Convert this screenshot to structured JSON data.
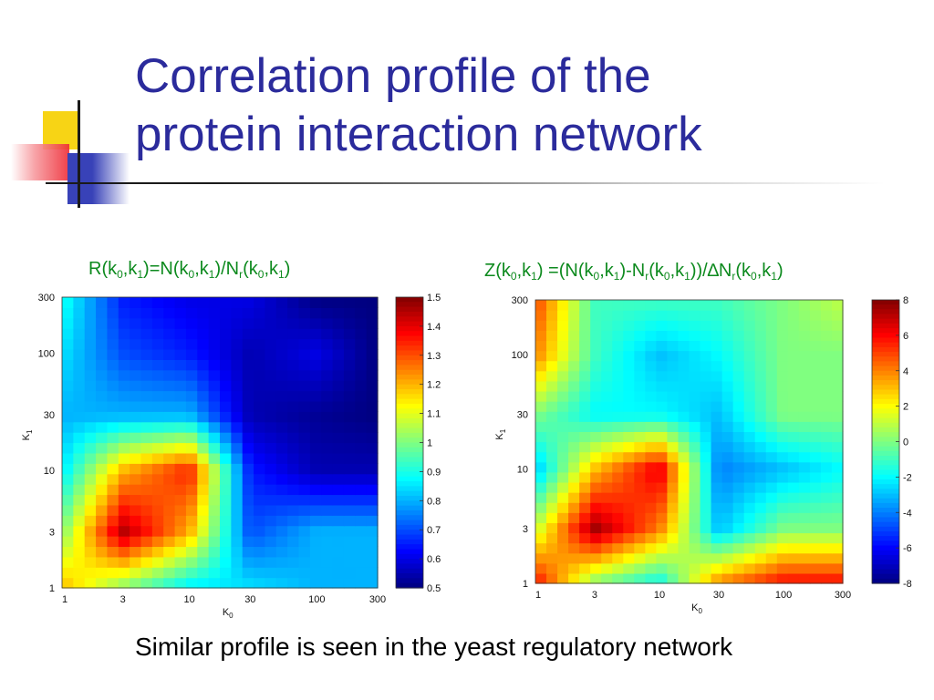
{
  "slide": {
    "title_line1": "Correlation profile of the",
    "title_line2": "protein interaction network",
    "caption": "Similar profile is seen in the yeast regulatory network",
    "colors": {
      "title": "#2b2b9c",
      "formula": "#0d8a1e",
      "caption": "#000000"
    }
  },
  "formula_left": {
    "parts": [
      "R(k",
      "0",
      ",k",
      "1",
      ")=N(k",
      "0",
      ",k",
      "1",
      ")/N",
      "r",
      "(k",
      "0",
      ",k",
      "1",
      ")"
    ]
  },
  "formula_right": {
    "parts": [
      "Z(k",
      "0",
      ",k",
      "1",
      ") =(N(k",
      "0",
      ",k",
      "1",
      ")-N",
      "r",
      "(k",
      "0",
      ",k",
      "1",
      "))/∆N",
      "r",
      "(k",
      "0",
      ",k",
      "1",
      ")"
    ]
  },
  "chart_data": [
    {
      "type": "heatmap",
      "title": "R(k0,k1)=N(k0,k1)/Nr(k0,k1)",
      "xlabel": "K0",
      "ylabel": "K1",
      "x_scale": "log",
      "y_scale": "log",
      "xlim": [
        1,
        300
      ],
      "ylim": [
        1,
        300
      ],
      "x_ticks": [
        "1",
        "3",
        "10",
        "30",
        "100",
        "300"
      ],
      "y_ticks": [
        "1",
        "3",
        "10",
        "30",
        "100",
        "300"
      ],
      "x": [
        1,
        3,
        10,
        30,
        100,
        300
      ],
      "y": [
        1,
        3,
        10,
        30,
        100,
        300
      ],
      "z": [
        [
          1.2,
          1.0,
          0.85,
          0.85,
          0.8,
          0.8
        ],
        [
          1.0,
          1.45,
          1.2,
          0.7,
          0.8,
          0.8
        ],
        [
          0.85,
          1.2,
          1.35,
          0.65,
          0.55,
          0.55
        ],
        [
          0.8,
          0.8,
          0.8,
          0.55,
          0.52,
          0.5
        ],
        [
          0.85,
          0.7,
          0.65,
          0.55,
          0.6,
          0.5
        ],
        [
          0.9,
          0.65,
          0.6,
          0.6,
          0.5,
          0.5
        ]
      ],
      "colorbar": {
        "min": 0.5,
        "max": 1.5,
        "ticks": [
          "1.5",
          "1.4",
          "1.3",
          "1.2",
          "1.1",
          "1",
          "0.9",
          "0.8",
          "0.7",
          "0.6",
          "0.5"
        ]
      }
    },
    {
      "type": "heatmap",
      "title": "Z(k0,k1) =(N(k0,k1)-Nr(k0,k1))/∆Nr(k0,k1)",
      "xlabel": "K0",
      "ylabel": "K1",
      "x_scale": "log",
      "y_scale": "log",
      "xlim": [
        1,
        300
      ],
      "ylim": [
        1,
        300
      ],
      "x_ticks": [
        "1",
        "3",
        "10",
        "30",
        "100",
        "300"
      ],
      "y_ticks": [
        "1",
        "3",
        "10",
        "30",
        "100",
        "300"
      ],
      "x": [
        1,
        3,
        10,
        30,
        100,
        300
      ],
      "y": [
        1,
        3,
        10,
        30,
        100,
        300
      ],
      "z": [
        [
          6,
          0,
          -2,
          4,
          6,
          6
        ],
        [
          1,
          7.5,
          4,
          -3,
          0,
          0
        ],
        [
          -3,
          3,
          6.5,
          -4,
          -3,
          -2
        ],
        [
          0,
          -2,
          -2,
          -3,
          0,
          0
        ],
        [
          4,
          -1,
          -3,
          -2,
          0,
          0
        ],
        [
          5,
          -1,
          -1,
          -1,
          0,
          1
        ]
      ],
      "colorbar": {
        "min": -8,
        "max": 8,
        "ticks": [
          "8",
          "6",
          "4",
          "2",
          "0",
          "-2",
          "-4",
          "-6",
          "-8"
        ]
      }
    }
  ]
}
